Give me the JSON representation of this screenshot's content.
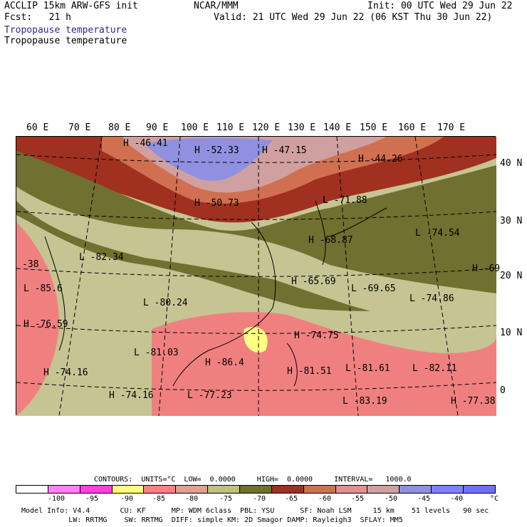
{
  "header": {
    "left1": "ACCLIP 15km ARW-GFS init",
    "left2": "Fcst:   21 h",
    "center": "NCAR/MMM",
    "right1": "Init: 00 UTC Wed 29 Jun 22",
    "right2": "Valid: 21 UTC Wed 29 Jun 22 (06 KST Thu 30 Jun 22)",
    "field_blue": "Tropopause temperature",
    "field_black": "Tropopause temperature"
  },
  "lon_labels": [
    "60 E",
    "70 E",
    "80 E",
    "90 E",
    "100 E",
    "110 E",
    "120 E",
    "130 E",
    "140 E",
    "150 E",
    "160 E",
    "170 E"
  ],
  "lat_labels": [
    "40 N",
    "30 N",
    "20 N",
    "10 N",
    "0"
  ],
  "map_labels": [
    {
      "letter": "H",
      "value": "-46.41"
    },
    {
      "letter": "H",
      "value": "-52.33"
    },
    {
      "letter": "H",
      "value": "-47.15"
    },
    {
      "letter": "H",
      "value": "-44.26"
    },
    {
      "letter": "H",
      "value": "-50.73"
    },
    {
      "letter": "L",
      "value": "-71.88"
    },
    {
      "letter": "L",
      "value": "-74.54"
    },
    {
      "letter": "H",
      "value": "-68.87"
    },
    {
      "letter": "L",
      "value": "-82.34"
    },
    {
      "letter": "H",
      "value": "-69"
    },
    {
      "letter": "H",
      "value": "-65.69"
    },
    {
      "letter": "L",
      "value": "-69.65"
    },
    {
      "letter": "L",
      "value": "-74.86"
    },
    {
      "letter": "L",
      "value": "-85.6"
    },
    {
      "letter": "L",
      "value": "-80.24"
    },
    {
      "letter": "H",
      "value": "-76.59"
    },
    {
      "letter": "H",
      "value": "-74.75"
    },
    {
      "letter": "L",
      "value": "-81.03"
    },
    {
      "letter": "H",
      "value": "-86.4"
    },
    {
      "letter": "H",
      "value": "-81.51"
    },
    {
      "letter": "L",
      "value": "-81.61"
    },
    {
      "letter": "L",
      "value": "-82.11"
    },
    {
      "letter": "H",
      "value": "-74.16"
    },
    {
      "letter": "H",
      "value": "-74.16"
    },
    {
      "letter": "L",
      "value": "-77.23"
    },
    {
      "letter": "L",
      "value": "-83.19"
    },
    {
      "letter": "H",
      "value": "-77.38"
    },
    {
      "letter": "",
      "value": "-38"
    }
  ],
  "contour_line": "CONTOURS:  UNITS=°C  LOW=  0.0000     HIGH=  0.0000     INTERVAL=   1000.0",
  "colorbar": {
    "colors": [
      "#ffffff",
      "#ff80ff",
      "#ff40e0",
      "#ffff80",
      "#ff8080",
      "#e0a090",
      "#c0c080",
      "#707030",
      "#a03020",
      "#d07050",
      "#e09090",
      "#d0a0a0",
      "#9090e0",
      "#8080ff",
      "#7070ff"
    ],
    "ticks": [
      "-100",
      "-95",
      "-90",
      "-85",
      "-80",
      "-75",
      "-70",
      "-65",
      "-60",
      "-55",
      "-50",
      "-45",
      "-40",
      "°C"
    ]
  },
  "footer": {
    "line1": "Model Info: V4.4       CU: KF      MP: WDM 6class  PBL: YSU      SF: Noah LSM     15 km    51 levels   90 sec",
    "line2": "           LW: RRTMG    SW: RRTMG  DIFF: simple KM: 2D Smagor DAMP: Rayleigh3  SFLAY: MM5"
  }
}
